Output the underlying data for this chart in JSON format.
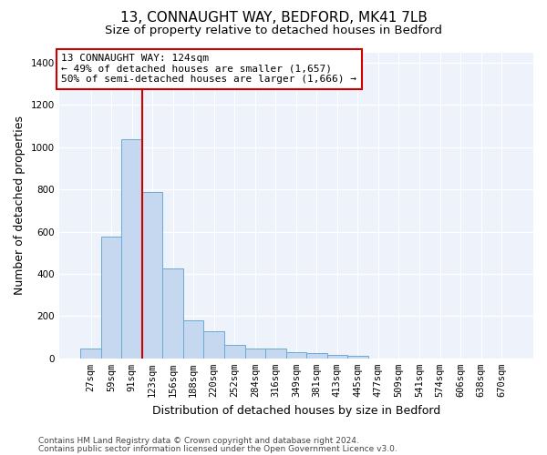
{
  "title_line1": "13, CONNAUGHT WAY, BEDFORD, MK41 7LB",
  "title_line2": "Size of property relative to detached houses in Bedford",
  "xlabel": "Distribution of detached houses by size in Bedford",
  "ylabel": "Number of detached properties",
  "bar_labels": [
    "27sqm",
    "59sqm",
    "91sqm",
    "123sqm",
    "156sqm",
    "188sqm",
    "220sqm",
    "252sqm",
    "284sqm",
    "316sqm",
    "349sqm",
    "381sqm",
    "413sqm",
    "445sqm",
    "477sqm",
    "509sqm",
    "541sqm",
    "574sqm",
    "606sqm",
    "638sqm",
    "670sqm"
  ],
  "bar_values": [
    45,
    575,
    1040,
    790,
    425,
    180,
    128,
    65,
    48,
    45,
    28,
    26,
    18,
    12,
    0,
    0,
    0,
    0,
    0,
    0,
    0
  ],
  "bar_color": "#c5d8f0",
  "bar_edge_color": "#6aaad4",
  "annotation_box_text": "13 CONNAUGHT WAY: 124sqm\n← 49% of detached houses are smaller (1,657)\n50% of semi-detached houses are larger (1,666) →",
  "vline_x_index": 2,
  "vline_color": "#cc0000",
  "annotation_box_color": "#cc0000",
  "ylim": [
    0,
    1450
  ],
  "yticks": [
    0,
    200,
    400,
    600,
    800,
    1000,
    1200,
    1400
  ],
  "footnote_line1": "Contains HM Land Registry data © Crown copyright and database right 2024.",
  "footnote_line2": "Contains public sector information licensed under the Open Government Licence v3.0.",
  "background_color": "#eef2fb",
  "grid_color": "#ffffff",
  "title_fontsize": 11,
  "subtitle_fontsize": 9.5,
  "axis_label_fontsize": 9,
  "tick_fontsize": 7.5,
  "annotation_fontsize": 8,
  "footnote_fontsize": 6.5
}
